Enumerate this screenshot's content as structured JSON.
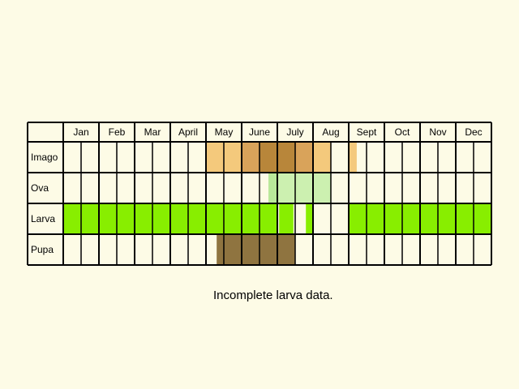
{
  "months": [
    "Jan",
    "Feb",
    "Mar",
    "April",
    "May",
    "June",
    "July",
    "Aug",
    "Sept",
    "Oct",
    "Nov",
    "Dec"
  ],
  "weeks_per_month": 2,
  "stages": [
    {
      "name": "Imago",
      "fills": [
        {
          "start": 8,
          "end": 9,
          "color": "#f4c97c"
        },
        {
          "start": 9,
          "end": 10,
          "color": "#f4c97c"
        },
        {
          "start": 10,
          "end": 11,
          "color": "#d9a35a"
        },
        {
          "start": 11,
          "end": 12,
          "color": "#b8863a"
        },
        {
          "start": 12,
          "end": 13,
          "color": "#b8863a"
        },
        {
          "start": 13,
          "end": 14,
          "color": "#d9a35a"
        },
        {
          "start": 14,
          "end": 15,
          "color": "#f4c97c"
        },
        {
          "start": 16,
          "end": 16.45,
          "color": "#f4c97c"
        }
      ]
    },
    {
      "name": "Ova",
      "fills": [
        {
          "start": 11.5,
          "end": 12,
          "color": "#b9e89a"
        },
        {
          "start": 12,
          "end": 15,
          "color": "#ccf0b0"
        }
      ]
    },
    {
      "name": "Larva",
      "fills": [
        {
          "start": 0,
          "end": 12,
          "color": "#88ee00"
        },
        {
          "start": 12.1,
          "end": 12.9,
          "color": "#88ee00"
        },
        {
          "start": 13.6,
          "end": 14,
          "color": "#88ee00"
        },
        {
          "start": 16,
          "end": 24,
          "color": "#88ee00"
        }
      ]
    },
    {
      "name": "Pupa",
      "fills": [
        {
          "start": 8.6,
          "end": 13,
          "color": "#8f7440"
        }
      ]
    }
  ],
  "note": "Incomplete larva data."
}
